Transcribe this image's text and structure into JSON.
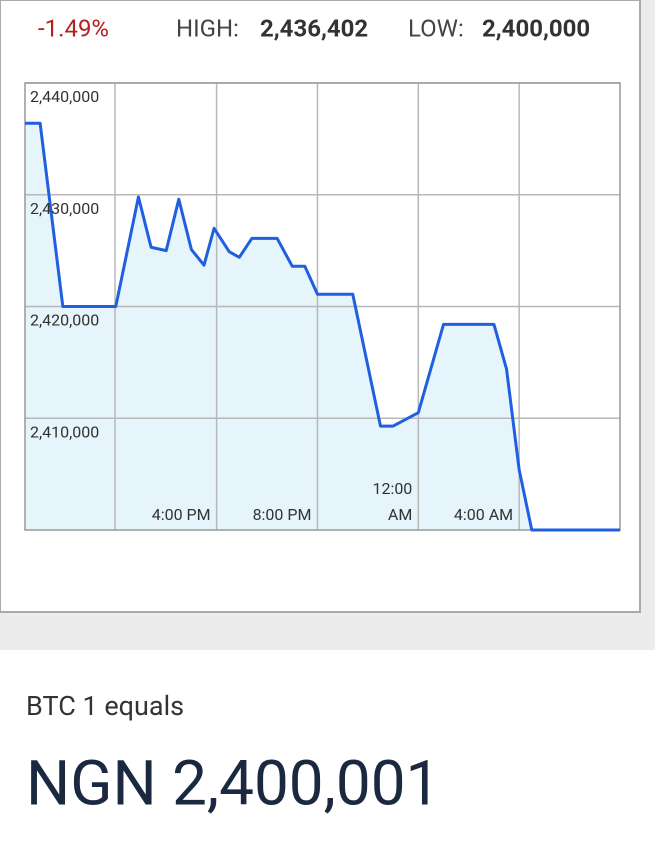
{
  "header": {
    "change": "-1.49%",
    "high_label": "HIGH:",
    "high": "2,436,402",
    "low_label": "LOW:",
    "low": "2,400,000"
  },
  "chart_data": {
    "type": "line",
    "x": [
      8.4,
      9.0,
      9.9,
      12.0,
      12.9,
      13.4,
      14.0,
      14.5,
      15.0,
      15.5,
      15.9,
      16.5,
      16.9,
      17.4,
      18.4,
      19.0,
      19.5,
      20.0,
      21.4,
      22.5,
      23.0,
      24.0,
      25.0,
      27.0,
      27.5,
      28.0,
      28.5,
      32.0
    ],
    "values": [
      2436400,
      2436400,
      2420000,
      2420000,
      2429800,
      2425300,
      2425000,
      2429600,
      2425100,
      2423700,
      2427000,
      2424900,
      2424400,
      2426100,
      2426100,
      2423600,
      2423600,
      2421100,
      2421100,
      2409300,
      2409300,
      2410500,
      2418400,
      2418400,
      2414400,
      2405400,
      2400000,
      2400000
    ],
    "color": "#1f5fe0",
    "fill": "#e6f4fb",
    "xlim": [
      8.4,
      32
    ],
    "ylim": [
      2400000,
      2440000
    ],
    "xticks": [
      {
        "value": 16,
        "label": "4:00 PM"
      },
      {
        "value": 20,
        "label": "8:00 PM"
      },
      {
        "value": 24,
        "label": "12:00 AM"
      },
      {
        "value": 28,
        "label": "4:00 AM"
      }
    ],
    "yticks": [
      {
        "value": 2410000,
        "label": "2,410,000"
      },
      {
        "value": 2420000,
        "label": "2,420,000"
      },
      {
        "value": 2430000,
        "label": "2,430,000"
      },
      {
        "value": 2440000,
        "label": "2,440,000"
      }
    ],
    "grid": true
  },
  "conversion": {
    "label": "BTC 1 equals",
    "result": "NGN 2,400,001"
  }
}
